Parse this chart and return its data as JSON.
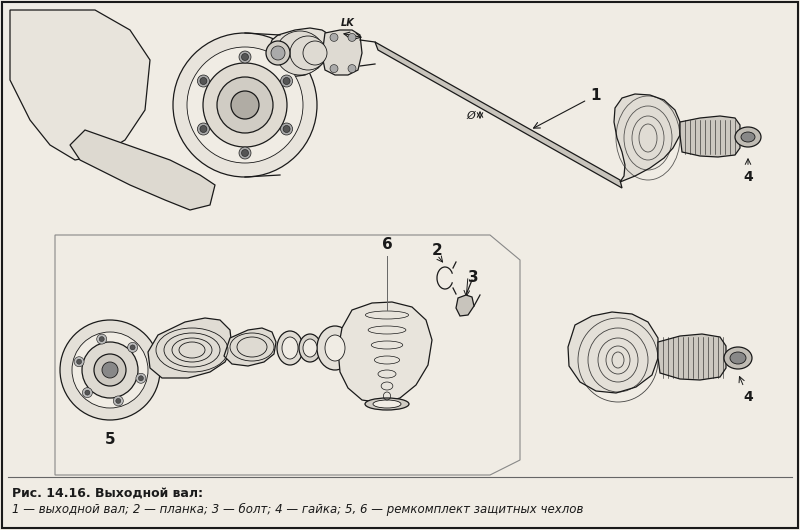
{
  "bg_color": "#f0ece4",
  "line_color": "#1a1a1a",
  "border_color": "#1a1a1a",
  "title_text": "Рис. 14.16. Выходной вал:",
  "caption_text": "1 — выходной вал; 2 — планка; 3 — болт; 4 — гайка; 5, 6 — ремкомплект защитных чехлов",
  "fig_width": 8.0,
  "fig_height": 5.3,
  "dpi": 100
}
